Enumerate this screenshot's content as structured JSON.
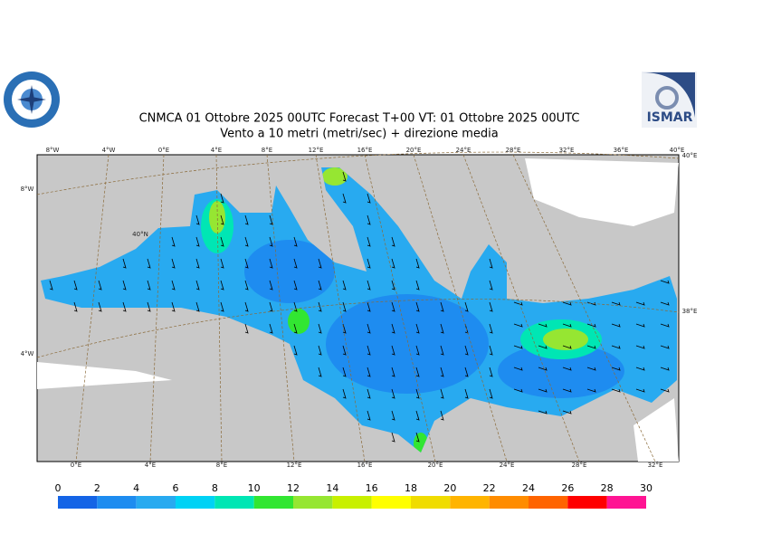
{
  "header": {
    "title": "CNMCA 01  Ottobre  2025 00UTC Forecast T+00 VT: 01  Ottobre  2025 00UTC",
    "subtitle": "Vento a 10 metri (metri/sec) + direzione media"
  },
  "logos": {
    "right": "ISMAR"
  },
  "graticule": {
    "top": [
      "8°W",
      "4°W",
      "0°E",
      "4°E",
      "8°E",
      "12°E",
      "16°E",
      "20°E",
      "24°E",
      "28°E",
      "32°E",
      "36°E",
      "40°E"
    ],
    "bottom": [
      "0°E",
      "4°E",
      "8°E",
      "12°E",
      "16°E",
      "20°E",
      "24°E",
      "28°E",
      "32°E"
    ],
    "left": [
      "8°W",
      "4°W"
    ],
    "inner": [
      "40°N"
    ],
    "right": [
      "40°E",
      "38°E"
    ]
  },
  "colorbar": {
    "ticks": [
      0,
      2,
      4,
      6,
      8,
      10,
      12,
      14,
      16,
      18,
      20,
      22,
      24,
      26,
      28,
      30
    ],
    "colors": [
      "#1464e6",
      "#1e8cf0",
      "#28aaf0",
      "#00d2f5",
      "#00e6b4",
      "#32e632",
      "#96e632",
      "#c8f000",
      "#ffff00",
      "#f0dc00",
      "#ffb400",
      "#ff8c00",
      "#ff6400",
      "#ff0000",
      "#ff1493"
    ]
  }
}
